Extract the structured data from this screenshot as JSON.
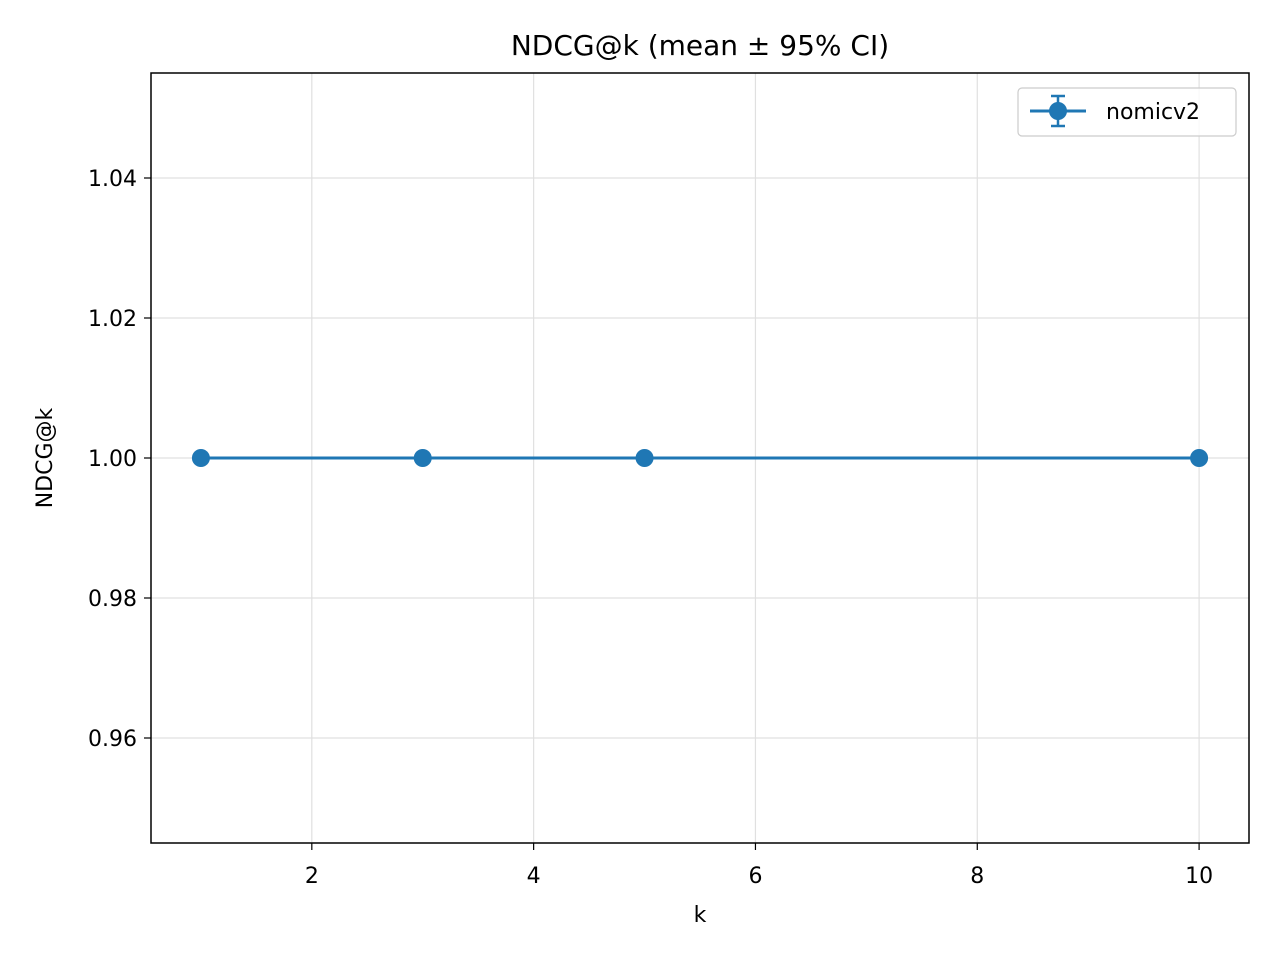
{
  "chart_data": {
    "type": "line",
    "title": "NDCG@k (mean ± 95% CI)",
    "xlabel": "k",
    "ylabel": "NDCG@k",
    "xlim": [
      0.55,
      10.45
    ],
    "ylim": [
      0.945,
      1.055
    ],
    "x_ticks": [
      2,
      4,
      6,
      8,
      10
    ],
    "x_tick_labels": [
      "2",
      "4",
      "6",
      "8",
      "10"
    ],
    "y_ticks": [
      0.96,
      0.98,
      1.0,
      1.02,
      1.04
    ],
    "y_tick_labels": [
      "0.96",
      "0.98",
      "1.00",
      "1.02",
      "1.04"
    ],
    "grid": true,
    "legend_position": "top-right",
    "series": [
      {
        "name": "nomicv2",
        "color": "#1f77b4",
        "x": [
          1,
          3,
          5,
          10
        ],
        "y": [
          1.0,
          1.0,
          1.0,
          1.0
        ],
        "ci_low": [
          1.0,
          1.0,
          1.0,
          1.0
        ],
        "ci_high": [
          1.0,
          1.0,
          1.0,
          1.0
        ]
      }
    ]
  }
}
